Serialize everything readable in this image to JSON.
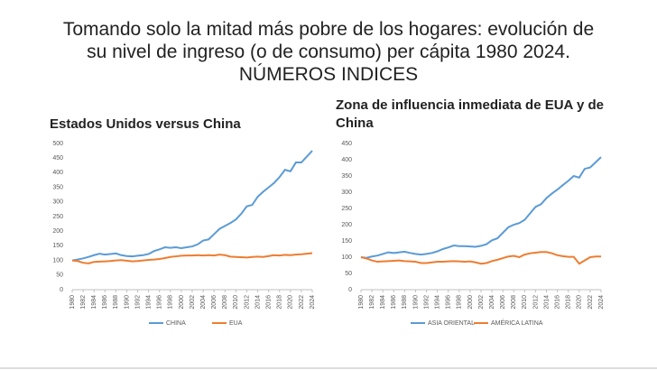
{
  "title_lines": [
    "Tomando solo la mitad más pobre de los hogares: evolución de",
    "su nivel de ingreso (o de consumo) per cápita 1980 2024.",
    "NÚMEROS INDICES"
  ],
  "chart_data": [
    {
      "type": "line",
      "title": "Estados Unidos versus China",
      "x": [
        1980,
        1981,
        1982,
        1983,
        1984,
        1985,
        1986,
        1987,
        1988,
        1989,
        1990,
        1991,
        1992,
        1993,
        1994,
        1995,
        1996,
        1997,
        1998,
        1999,
        2000,
        2001,
        2002,
        2003,
        2004,
        2005,
        2006,
        2007,
        2008,
        2009,
        2010,
        2011,
        2012,
        2013,
        2014,
        2015,
        2016,
        2017,
        2018,
        2019,
        2020,
        2021,
        2022,
        2023,
        2024
      ],
      "xlim": [
        1980,
        2024
      ],
      "xticks": [
        1980,
        1982,
        1984,
        1986,
        1988,
        1990,
        1992,
        1994,
        1996,
        1998,
        2000,
        2002,
        2004,
        2006,
        2008,
        2010,
        2012,
        2014,
        2016,
        2018,
        2020,
        2022,
        2024
      ],
      "ylim": [
        0,
        500
      ],
      "yticks": [
        0,
        50,
        100,
        150,
        200,
        250,
        300,
        350,
        400,
        450,
        500
      ],
      "grid": false,
      "series": [
        {
          "name": "CHINA",
          "color": "#5b9bd5",
          "values": [
            100,
            103,
            107,
            112,
            118,
            123,
            120,
            122,
            124,
            118,
            115,
            114,
            116,
            118,
            122,
            132,
            138,
            145,
            143,
            145,
            142,
            145,
            148,
            155,
            168,
            172,
            190,
            208,
            218,
            228,
            240,
            260,
            285,
            290,
            318,
            335,
            350,
            365,
            385,
            410,
            405,
            435,
            435,
            455,
            475
          ]
        },
        {
          "name": "EUA",
          "color": "#ed7d31",
          "values": [
            100,
            98,
            92,
            90,
            95,
            96,
            97,
            98,
            100,
            101,
            99,
            97,
            98,
            100,
            102,
            103,
            105,
            108,
            112,
            114,
            116,
            117,
            117,
            118,
            117,
            118,
            117,
            120,
            118,
            113,
            112,
            111,
            110,
            112,
            113,
            112,
            115,
            118,
            117,
            119,
            118,
            120,
            121,
            123,
            125
          ]
        }
      ]
    },
    {
      "type": "line",
      "title": "Zona de influencia inmediata de EUA y de China",
      "x": [
        1980,
        1981,
        1982,
        1983,
        1984,
        1985,
        1986,
        1987,
        1988,
        1989,
        1990,
        1991,
        1992,
        1993,
        1994,
        1995,
        1996,
        1997,
        1998,
        1999,
        2000,
        2001,
        2002,
        2003,
        2004,
        2005,
        2006,
        2007,
        2008,
        2009,
        2010,
        2011,
        2012,
        2013,
        2014,
        2015,
        2016,
        2017,
        2018,
        2019,
        2020,
        2021,
        2022,
        2023,
        2024
      ],
      "xlim": [
        1980,
        2024
      ],
      "xticks": [
        1980,
        1982,
        1984,
        1986,
        1988,
        1990,
        1992,
        1994,
        1996,
        1998,
        2000,
        2002,
        2004,
        2006,
        2008,
        2010,
        2012,
        2014,
        2016,
        2018,
        2020,
        2022,
        2024
      ],
      "ylim": [
        0,
        450
      ],
      "yticks": [
        0,
        50,
        100,
        150,
        200,
        250,
        300,
        350,
        400,
        450
      ],
      "grid": false,
      "series": [
        {
          "name": "ASIA ORIENTAL",
          "color": "#5b9bd5",
          "values": [
            100,
            98,
            102,
            105,
            110,
            115,
            113,
            115,
            117,
            113,
            110,
            108,
            110,
            113,
            118,
            125,
            130,
            136,
            134,
            134,
            133,
            132,
            135,
            140,
            152,
            158,
            175,
            192,
            200,
            205,
            215,
            235,
            255,
            263,
            282,
            296,
            308,
            322,
            335,
            350,
            345,
            372,
            376,
            392,
            408
          ]
        },
        {
          "name": "AMÉRICA LATINA",
          "color": "#ed7d31",
          "values": [
            100,
            96,
            90,
            86,
            87,
            88,
            89,
            90,
            88,
            87,
            86,
            82,
            82,
            84,
            86,
            86,
            87,
            88,
            87,
            86,
            87,
            84,
            80,
            82,
            88,
            92,
            97,
            102,
            104,
            100,
            108,
            112,
            114,
            116,
            116,
            112,
            106,
            103,
            101,
            101,
            80,
            90,
            100,
            102,
            102
          ]
        }
      ]
    }
  ]
}
